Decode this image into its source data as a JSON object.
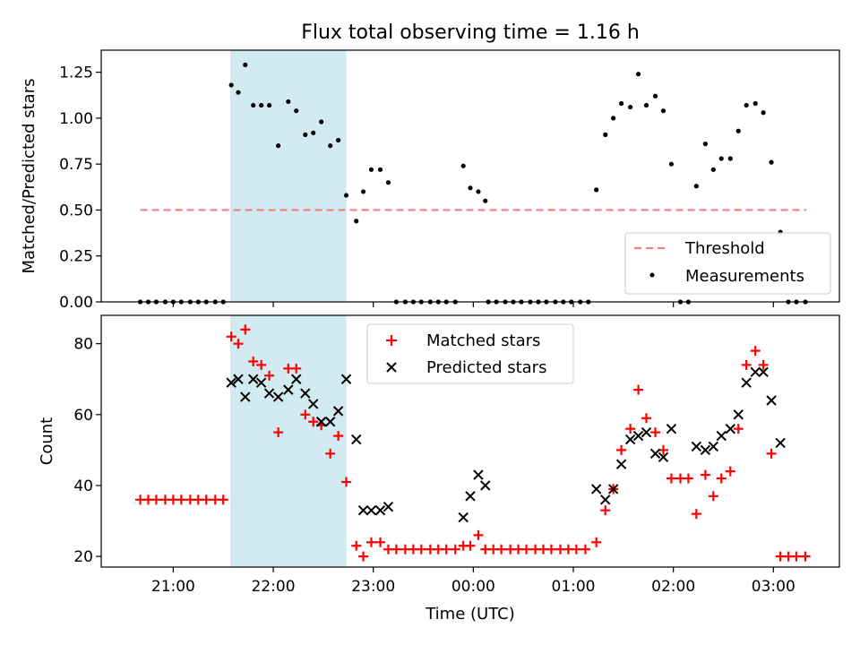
{
  "figure": {
    "title": "Flux total observing time = 1.16 h",
    "xlabel": "Time (UTC)",
    "x_ticks": [
      {
        "hour": 21,
        "label": "21:00"
      },
      {
        "hour": 22,
        "label": "22:00"
      },
      {
        "hour": 23,
        "label": "23:00"
      },
      {
        "hour": 24,
        "label": "00:00"
      },
      {
        "hour": 25,
        "label": "01:00"
      },
      {
        "hour": 26,
        "label": "02:00"
      },
      {
        "hour": 27,
        "label": "03:00"
      }
    ],
    "xlim": [
      20.28,
      27.66
    ],
    "shaded_interval": {
      "start_hour": 21.57,
      "end_hour": 22.73,
      "color": "#add8e6"
    }
  },
  "chart_data": [
    {
      "type": "scatter",
      "ylabel": "Matched/Predicted stars",
      "ylim": [
        0,
        1.37
      ],
      "y_ticks": [
        "0.00",
        "0.25",
        "0.50",
        "0.75",
        "1.00",
        "1.25"
      ],
      "y_tick_values": [
        0,
        0.25,
        0.5,
        0.75,
        1.0,
        1.25
      ],
      "legend_position": "lower-right",
      "threshold": {
        "name": "Threshold",
        "value": 0.5,
        "x_range": [
          20.67,
          27.33
        ],
        "color": "#f08080"
      },
      "series": [
        {
          "name": "Measurements",
          "color": "#000000",
          "points": [
            [
              20.67,
              0
            ],
            [
              20.75,
              0
            ],
            [
              20.83,
              0
            ],
            [
              20.92,
              0
            ],
            [
              21.0,
              0
            ],
            [
              21.08,
              0
            ],
            [
              21.17,
              0
            ],
            [
              21.25,
              0
            ],
            [
              21.33,
              0
            ],
            [
              21.42,
              0
            ],
            [
              21.5,
              0
            ],
            [
              21.58,
              1.18
            ],
            [
              21.65,
              1.14
            ],
            [
              21.72,
              1.29
            ],
            [
              21.8,
              1.07
            ],
            [
              21.88,
              1.07
            ],
            [
              21.96,
              1.07
            ],
            [
              22.05,
              0.85
            ],
            [
              22.15,
              1.09
            ],
            [
              22.23,
              1.04
            ],
            [
              22.32,
              0.91
            ],
            [
              22.4,
              0.92
            ],
            [
              22.48,
              0.98
            ],
            [
              22.57,
              0.85
            ],
            [
              22.65,
              0.88
            ],
            [
              22.73,
              0.58
            ],
            [
              22.83,
              0.44
            ],
            [
              22.9,
              0.6
            ],
            [
              22.98,
              0.72
            ],
            [
              23.07,
              0.72
            ],
            [
              23.15,
              0.65
            ],
            [
              23.23,
              0
            ],
            [
              23.32,
              0
            ],
            [
              23.4,
              0
            ],
            [
              23.48,
              0
            ],
            [
              23.57,
              0
            ],
            [
              23.65,
              0
            ],
            [
              23.73,
              0
            ],
            [
              23.82,
              0
            ],
            [
              23.9,
              0.74
            ],
            [
              23.97,
              0.62
            ],
            [
              24.05,
              0.6
            ],
            [
              24.12,
              0.55
            ],
            [
              24.15,
              0
            ],
            [
              24.23,
              0
            ],
            [
              24.32,
              0
            ],
            [
              24.4,
              0
            ],
            [
              24.48,
              0
            ],
            [
              24.57,
              0
            ],
            [
              24.65,
              0
            ],
            [
              24.73,
              0
            ],
            [
              24.82,
              0
            ],
            [
              24.9,
              0
            ],
            [
              24.98,
              0
            ],
            [
              25.07,
              0
            ],
            [
              25.15,
              0
            ],
            [
              25.23,
              0.61
            ],
            [
              25.32,
              0.91
            ],
            [
              25.4,
              1.0
            ],
            [
              25.48,
              1.08
            ],
            [
              25.57,
              1.06
            ],
            [
              25.65,
              1.24
            ],
            [
              25.73,
              1.07
            ],
            [
              25.82,
              1.12
            ],
            [
              25.9,
              1.04
            ],
            [
              25.98,
              0.75
            ],
            [
              26.07,
              0
            ],
            [
              26.15,
              0
            ],
            [
              26.23,
              0.63
            ],
            [
              26.32,
              0.86
            ],
            [
              26.4,
              0.72
            ],
            [
              26.48,
              0.78
            ],
            [
              26.57,
              0.78
            ],
            [
              26.65,
              0.93
            ],
            [
              26.73,
              1.07
            ],
            [
              26.82,
              1.08
            ],
            [
              26.9,
              1.03
            ],
            [
              26.98,
              0.76
            ],
            [
              27.07,
              0.38
            ],
            [
              27.15,
              0
            ],
            [
              27.23,
              0
            ],
            [
              27.32,
              0
            ]
          ]
        }
      ]
    },
    {
      "type": "scatter",
      "ylabel": "Count",
      "ylim": [
        17,
        88
      ],
      "y_ticks": [
        "20",
        "40",
        "60",
        "80"
      ],
      "y_tick_values": [
        20,
        40,
        60,
        80
      ],
      "legend_position": "upper-center",
      "series": [
        {
          "name": "Matched stars",
          "marker": "plus",
          "color": "#ff0000",
          "points": [
            [
              20.67,
              36
            ],
            [
              20.75,
              36
            ],
            [
              20.83,
              36
            ],
            [
              20.92,
              36
            ],
            [
              21.0,
              36
            ],
            [
              21.08,
              36
            ],
            [
              21.17,
              36
            ],
            [
              21.25,
              36
            ],
            [
              21.33,
              36
            ],
            [
              21.42,
              36
            ],
            [
              21.5,
              36
            ],
            [
              21.58,
              82
            ],
            [
              21.65,
              80
            ],
            [
              21.72,
              84
            ],
            [
              21.8,
              75
            ],
            [
              21.88,
              74
            ],
            [
              21.96,
              71
            ],
            [
              22.05,
              55
            ],
            [
              22.15,
              73
            ],
            [
              22.23,
              73
            ],
            [
              22.32,
              60
            ],
            [
              22.4,
              58
            ],
            [
              22.48,
              57
            ],
            [
              22.57,
              49
            ],
            [
              22.65,
              54
            ],
            [
              22.73,
              41
            ],
            [
              22.83,
              23
            ],
            [
              22.9,
              20
            ],
            [
              22.98,
              24
            ],
            [
              23.07,
              24
            ],
            [
              23.15,
              22
            ],
            [
              23.23,
              22
            ],
            [
              23.32,
              22
            ],
            [
              23.4,
              22
            ],
            [
              23.48,
              22
            ],
            [
              23.57,
              22
            ],
            [
              23.65,
              22
            ],
            [
              23.73,
              22
            ],
            [
              23.82,
              22
            ],
            [
              23.9,
              23
            ],
            [
              23.97,
              23
            ],
            [
              24.05,
              26
            ],
            [
              24.12,
              22
            ],
            [
              24.2,
              22
            ],
            [
              24.28,
              22
            ],
            [
              24.37,
              22
            ],
            [
              24.45,
              22
            ],
            [
              24.53,
              22
            ],
            [
              24.62,
              22
            ],
            [
              24.7,
              22
            ],
            [
              24.78,
              22
            ],
            [
              24.87,
              22
            ],
            [
              24.95,
              22
            ],
            [
              25.03,
              22
            ],
            [
              25.12,
              22
            ],
            [
              25.23,
              24
            ],
            [
              25.32,
              33
            ],
            [
              25.4,
              39
            ],
            [
              25.48,
              50
            ],
            [
              25.57,
              56
            ],
            [
              25.65,
              67
            ],
            [
              25.73,
              59
            ],
            [
              25.82,
              55
            ],
            [
              25.9,
              50
            ],
            [
              25.98,
              42
            ],
            [
              26.07,
              42
            ],
            [
              26.15,
              42
            ],
            [
              26.23,
              32
            ],
            [
              26.32,
              43
            ],
            [
              26.4,
              37
            ],
            [
              26.48,
              42
            ],
            [
              26.57,
              44
            ],
            [
              26.65,
              56
            ],
            [
              26.73,
              74
            ],
            [
              26.82,
              78
            ],
            [
              26.9,
              74
            ],
            [
              26.98,
              49
            ],
            [
              27.07,
              20
            ],
            [
              27.15,
              20
            ],
            [
              27.23,
              20
            ],
            [
              27.32,
              20
            ]
          ]
        },
        {
          "name": "Predicted stars",
          "marker": "x",
          "color": "#000000",
          "points": [
            [
              21.58,
              69
            ],
            [
              21.65,
              70
            ],
            [
              21.72,
              65
            ],
            [
              21.8,
              70
            ],
            [
              21.88,
              69
            ],
            [
              21.96,
              66
            ],
            [
              22.05,
              65
            ],
            [
              22.15,
              67
            ],
            [
              22.23,
              70
            ],
            [
              22.32,
              66
            ],
            [
              22.4,
              63
            ],
            [
              22.48,
              58
            ],
            [
              22.57,
              58
            ],
            [
              22.65,
              61
            ],
            [
              22.73,
              70
            ],
            [
              22.83,
              53
            ],
            [
              22.9,
              33
            ],
            [
              22.98,
              33
            ],
            [
              23.07,
              33
            ],
            [
              23.15,
              34
            ],
            [
              23.9,
              31
            ],
            [
              23.97,
              37
            ],
            [
              24.05,
              43
            ],
            [
              24.12,
              40
            ],
            [
              25.23,
              39
            ],
            [
              25.32,
              36
            ],
            [
              25.4,
              39
            ],
            [
              25.48,
              46
            ],
            [
              25.57,
              53
            ],
            [
              25.65,
              54
            ],
            [
              25.73,
              55
            ],
            [
              25.82,
              49
            ],
            [
              25.9,
              48
            ],
            [
              25.98,
              56
            ],
            [
              26.23,
              51
            ],
            [
              26.32,
              50
            ],
            [
              26.4,
              51
            ],
            [
              26.48,
              54
            ],
            [
              26.57,
              56
            ],
            [
              26.65,
              60
            ],
            [
              26.73,
              69
            ],
            [
              26.82,
              72
            ],
            [
              26.9,
              72
            ],
            [
              26.98,
              64
            ],
            [
              27.07,
              52
            ]
          ]
        }
      ]
    }
  ]
}
